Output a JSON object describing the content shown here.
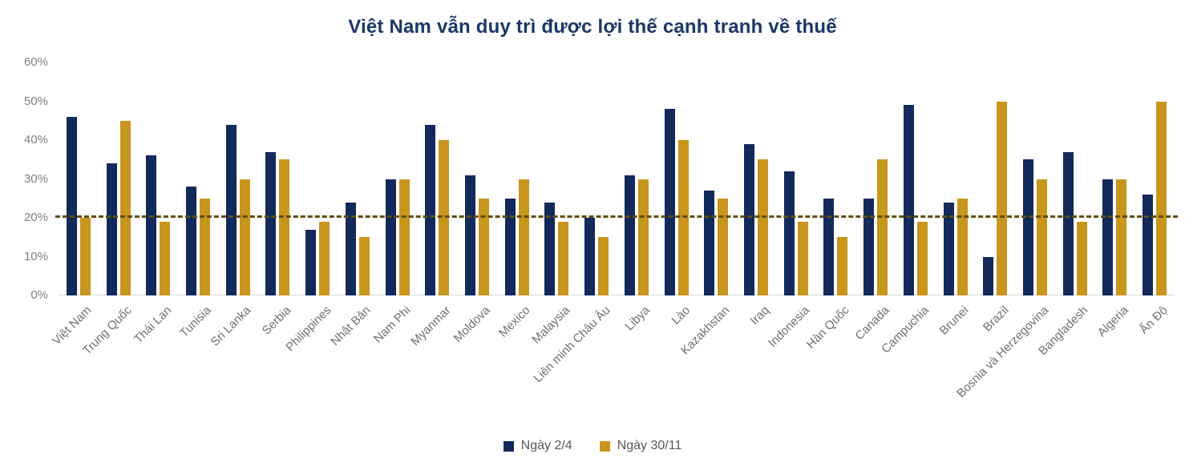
{
  "chart_data": {
    "type": "bar",
    "title": "Việt Nam vẫn duy trì được lợi thế cạnh tranh về thuế",
    "categories": [
      "Việt Nam",
      "Trung Quốc",
      "Thái Lan",
      "Tunisia",
      "Sri Lanka",
      "Serbia",
      "Philippines",
      "Nhật Bản",
      "Nam Phi",
      "Myanmar",
      "Moldova",
      "Mexico",
      "Malaysia",
      "Liên minh Châu Âu",
      "Libya",
      "Lào",
      "Kazakhstan",
      "Iraq",
      "Indonesia",
      "Hàn Quốc",
      "Canada",
      "Campuchia",
      "Brunei",
      "Brazil",
      "Bosnia và Herzegovina",
      "Bangladesh",
      "Algeria",
      "Ấn Độ"
    ],
    "series": [
      {
        "name": "Ngày 2/4",
        "color": "#12295C",
        "values": [
          46,
          34,
          36,
          28,
          44,
          37,
          17,
          24,
          30,
          44,
          31,
          25,
          24,
          20,
          31,
          48,
          27,
          39,
          32,
          25,
          25,
          49,
          24,
          10,
          35,
          37,
          30,
          26
        ]
      },
      {
        "name": "Ngày 30/11",
        "color": "#C8951D",
        "values": [
          20,
          45,
          19,
          25,
          30,
          35,
          19,
          15,
          30,
          40,
          25,
          30,
          19,
          15,
          30,
          40,
          25,
          35,
          19,
          15,
          35,
          19,
          25,
          50,
          30,
          19,
          30,
          50
        ]
      }
    ],
    "y_axis": {
      "min": 0,
      "max": 60,
      "step": 10,
      "tick_labels": [
        "0%",
        "10%",
        "20%",
        "30%",
        "40%",
        "50%",
        "60%"
      ]
    },
    "reference_line": {
      "value": 20,
      "style": "dashed",
      "color": "#5E4E12"
    },
    "legend_position": "bottom",
    "grid": false,
    "xlabel": "",
    "ylabel": ""
  },
  "colors": {
    "title": "#1B3866",
    "axis_text": "#7F7F7F",
    "category_text": "#707070",
    "legend_text": "#595959",
    "baseline": "#D9D9D9",
    "background": "#FFFFFF",
    "series_navy": "#12295C",
    "series_gold": "#C8951D",
    "reference_line": "#5E4E12"
  }
}
